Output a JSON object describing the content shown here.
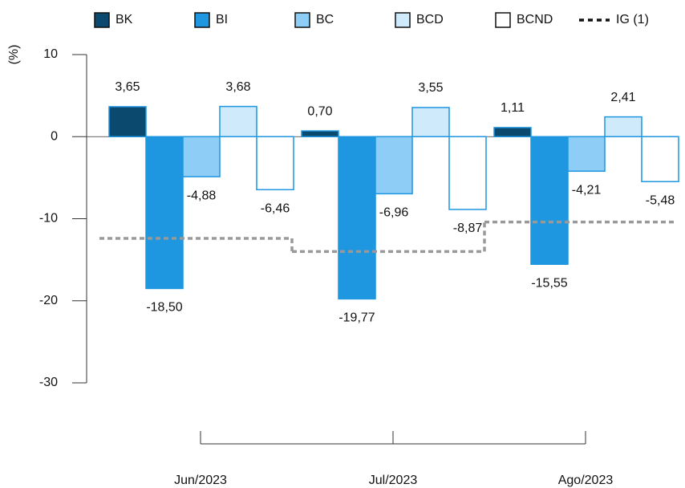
{
  "chart_data": {
    "type": "bar",
    "ylabel": "(%)",
    "categories": [
      "Jun/2023",
      "Jul/2023",
      "Ago/2023"
    ],
    "ylim": [
      -30,
      10
    ],
    "yticks": [
      10,
      0,
      -10,
      -20,
      -30
    ],
    "edgecolor": "#1e96e0",
    "series": [
      {
        "name": "BK",
        "color": "#0b4a6e",
        "values": [
          3.65,
          0.7,
          1.11
        ],
        "value_labels": [
          "3,65",
          "0,70",
          "1,11"
        ]
      },
      {
        "name": "BI",
        "color": "#1e96e0",
        "values": [
          -18.5,
          -19.77,
          -15.55
        ],
        "value_labels": [
          "-18,50",
          "-19,77",
          "-15,55"
        ]
      },
      {
        "name": "BC",
        "color": "#8ecdf5",
        "values": [
          -4.88,
          -6.96,
          -4.21
        ],
        "value_labels": [
          "-4,88",
          "-6,96",
          "-4,21"
        ]
      },
      {
        "name": "BCD",
        "color": "#cfeafb",
        "values": [
          3.68,
          3.55,
          2.41
        ],
        "value_labels": [
          "3,68",
          "3,55",
          "2,41"
        ]
      },
      {
        "name": "BCND",
        "color": "#ffffff",
        "values": [
          -6.46,
          -8.87,
          -5.48
        ],
        "value_labels": [
          "-6,46",
          "-8,87",
          "-5,48"
        ]
      }
    ],
    "lines": [
      {
        "name": "IG (1)",
        "color": "#999999",
        "values": [
          -12.4,
          -14.0,
          -10.4
        ]
      }
    ]
  }
}
